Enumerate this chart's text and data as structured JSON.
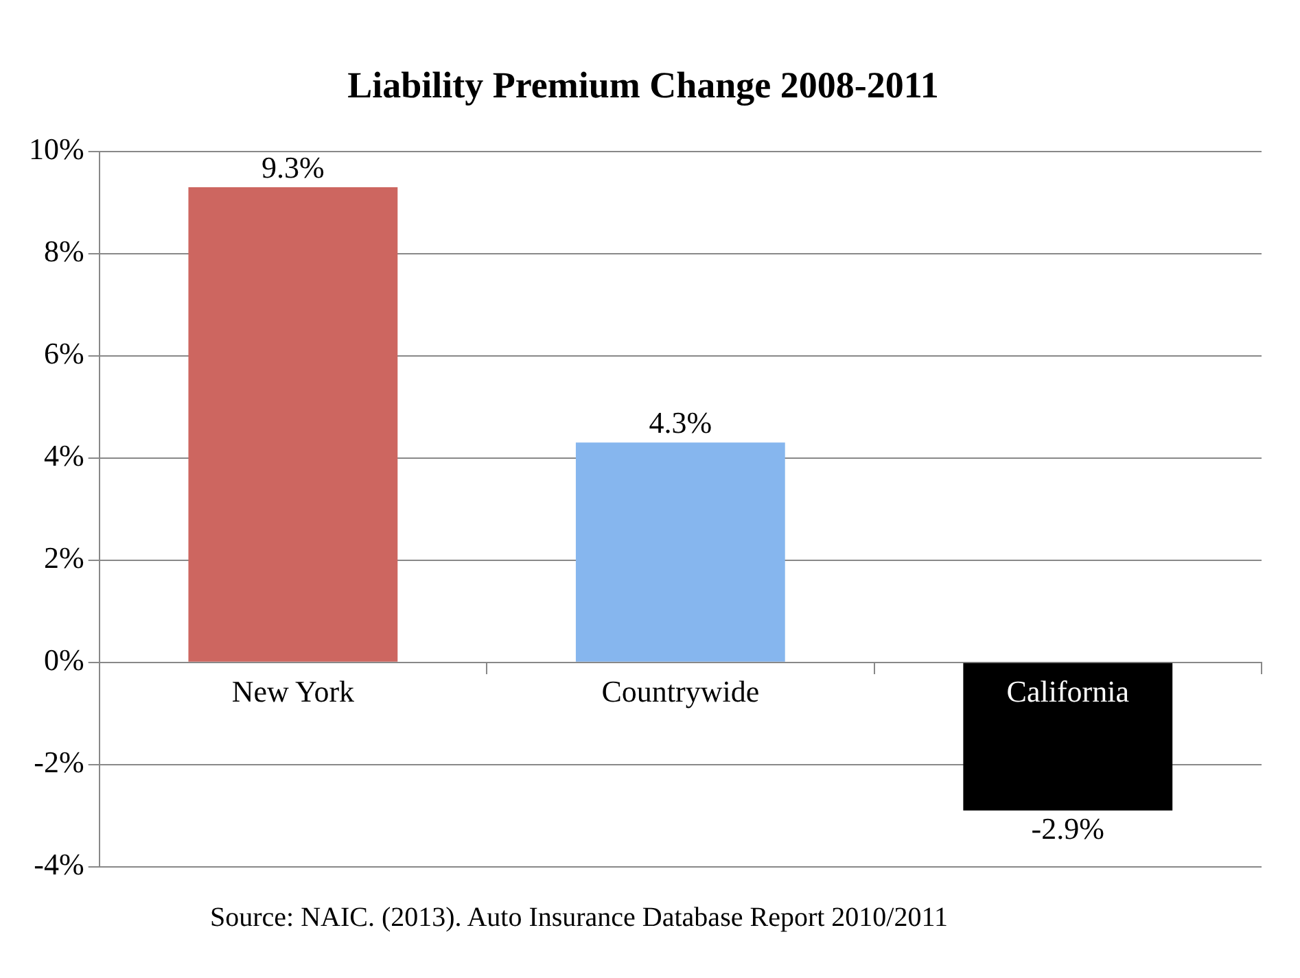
{
  "chart_data": {
    "type": "bar",
    "title": "Liability Premium Change 2008-2011",
    "categories": [
      "New York",
      "Countrywide",
      "California"
    ],
    "values": [
      9.3,
      4.3,
      -2.9
    ],
    "colors": [
      "#cd6660",
      "#86b6ee",
      "#000000"
    ],
    "value_labels": [
      "9.3%",
      "4.3%",
      "-2.9%"
    ],
    "ylim": [
      -4,
      10
    ],
    "yticks": [
      {
        "value": -4,
        "label": "-4%"
      },
      {
        "value": -2,
        "label": "-2%"
      },
      {
        "value": 0,
        "label": "0%"
      },
      {
        "value": 2,
        "label": "2%"
      },
      {
        "value": 4,
        "label": "4%"
      },
      {
        "value": 6,
        "label": "6%"
      },
      {
        "value": 8,
        "label": "8%"
      },
      {
        "value": 10,
        "label": "10%"
      }
    ],
    "grid": "y",
    "annotations": [
      "Source: NAIC. (2013). Auto Insurance Database Report 2010/2011"
    ]
  }
}
